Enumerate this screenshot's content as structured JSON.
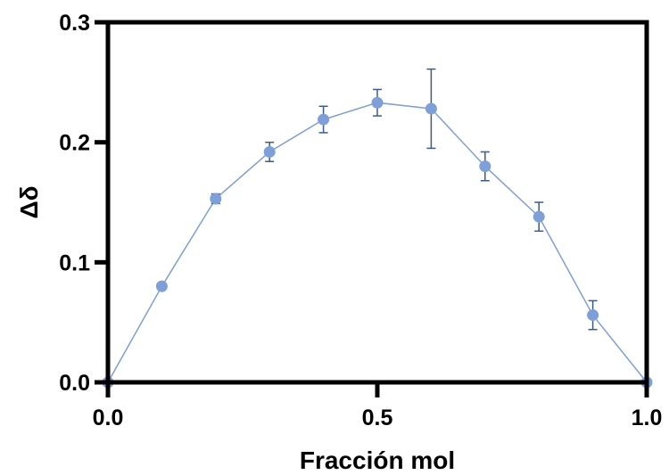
{
  "chart_data": {
    "type": "scatter",
    "xlabel": "Fracción mol",
    "ylabel": "Δδ",
    "xlim": [
      0.0,
      1.0
    ],
    "ylim": [
      0.0,
      0.3
    ],
    "x_ticks": [
      "0.0",
      "0.5",
      "1.0"
    ],
    "y_ticks": [
      "0.0",
      "0.1",
      "0.2",
      "0.3"
    ],
    "grid": false,
    "series": [
      {
        "connected": true,
        "color": "#7f9fd8",
        "errorbar_color": "#3d5a8c",
        "points": [
          {
            "x": 0.0,
            "y": 0.0,
            "err": 0.0
          },
          {
            "x": 0.1,
            "y": 0.08,
            "err": 0.0
          },
          {
            "x": 0.2,
            "y": 0.153,
            "err": 0.004
          },
          {
            "x": 0.3,
            "y": 0.192,
            "err": 0.008
          },
          {
            "x": 0.4,
            "y": 0.219,
            "err": 0.011
          },
          {
            "x": 0.5,
            "y": 0.233,
            "err": 0.011
          },
          {
            "x": 0.6,
            "y": 0.228,
            "err": 0.033
          },
          {
            "x": 0.7,
            "y": 0.18,
            "err": 0.012
          },
          {
            "x": 0.8,
            "y": 0.138,
            "err": 0.012
          },
          {
            "x": 0.9,
            "y": 0.056,
            "err": 0.012
          },
          {
            "x": 1.0,
            "y": 0.0,
            "err": 0.0
          }
        ]
      }
    ]
  }
}
